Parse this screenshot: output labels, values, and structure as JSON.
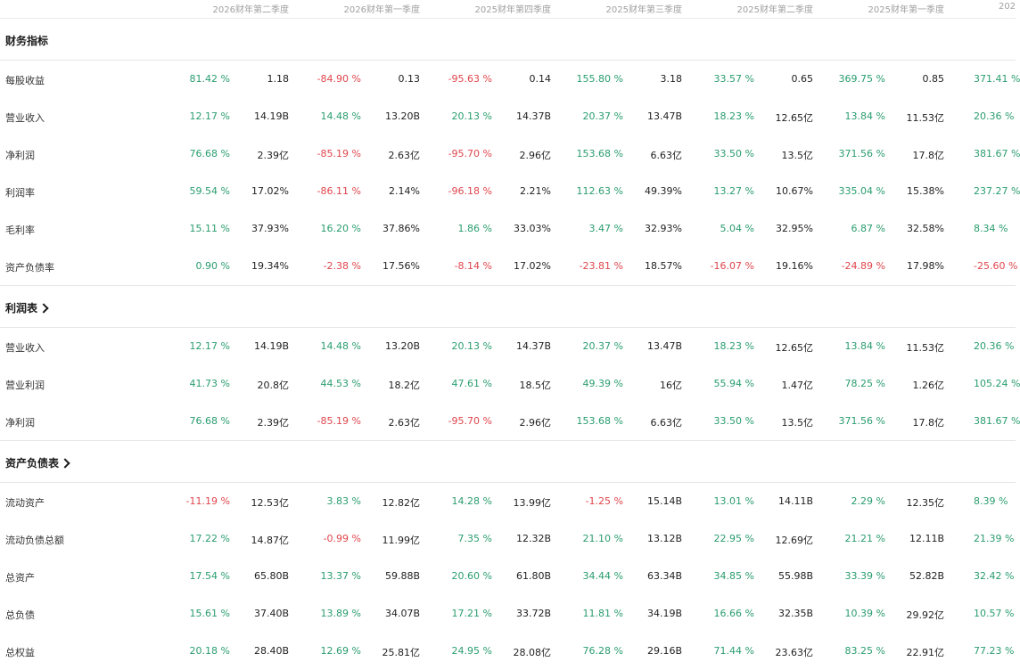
{
  "colors": {
    "positive": "#2a9d6f",
    "negative": "#e0454c",
    "header_text": "#a0a0a0"
  },
  "periods": [
    "2026财年第二季度",
    "2026财年第一季度",
    "2025财年第四季度",
    "2025财年第三季度",
    "2025财年第二季度",
    "2025财年第一季度"
  ],
  "period_clipped": "202",
  "sections": [
    {
      "title": "财务指标",
      "has_chevron": false,
      "rows": [
        {
          "label": "每股收益",
          "cells": [
            [
              "81.42 %",
              "1.18"
            ],
            [
              "-84.90 %",
              "0.13"
            ],
            [
              "-95.63 %",
              "0.14"
            ],
            [
              "155.80 %",
              "3.18"
            ],
            [
              "33.57 %",
              "0.65"
            ],
            [
              "369.75 %",
              "0.85"
            ],
            [
              "371.41 %",
              ""
            ]
          ]
        },
        {
          "label": "营业收入",
          "cells": [
            [
              "12.17 %",
              "14.19B"
            ],
            [
              "14.48 %",
              "13.20B"
            ],
            [
              "20.13 %",
              "14.37B"
            ],
            [
              "20.37 %",
              "13.47B"
            ],
            [
              "18.23 %",
              "12.65亿"
            ],
            [
              "13.84 %",
              "11.53亿"
            ],
            [
              "20.36 %",
              ""
            ]
          ]
        },
        {
          "label": "净利润",
          "cells": [
            [
              "76.68 %",
              "2.39亿"
            ],
            [
              "-85.19 %",
              "2.63亿"
            ],
            [
              "-95.70 %",
              "2.96亿"
            ],
            [
              "153.68 %",
              "6.63亿"
            ],
            [
              "33.50 %",
              "13.5亿"
            ],
            [
              "371.56 %",
              "17.8亿"
            ],
            [
              "381.67 %",
              ""
            ]
          ]
        },
        {
          "label": "利润率",
          "cells": [
            [
              "59.54 %",
              "17.02%"
            ],
            [
              "-86.11 %",
              "2.14%"
            ],
            [
              "-96.18 %",
              "2.21%"
            ],
            [
              "112.63 %",
              "49.39%"
            ],
            [
              "13.27 %",
              "10.67%"
            ],
            [
              "335.04 %",
              "15.38%"
            ],
            [
              "237.27 %",
              ""
            ]
          ]
        },
        {
          "label": "毛利率",
          "cells": [
            [
              "15.11 %",
              "37.93%"
            ],
            [
              "16.20 %",
              "37.86%"
            ],
            [
              "1.86 %",
              "33.03%"
            ],
            [
              "3.47 %",
              "32.93%"
            ],
            [
              "5.04 %",
              "32.95%"
            ],
            [
              "6.87 %",
              "32.58%"
            ],
            [
              "8.34 %",
              ""
            ]
          ]
        },
        {
          "label": "资产负债率",
          "cells": [
            [
              "0.90 %",
              "19.34%"
            ],
            [
              "-2.38 %",
              "17.56%"
            ],
            [
              "-8.14 %",
              "17.02%"
            ],
            [
              "-23.81 %",
              "18.57%"
            ],
            [
              "-16.07 %",
              "19.16%"
            ],
            [
              "-24.89 %",
              "17.98%"
            ],
            [
              "-25.60 %",
              ""
            ]
          ]
        }
      ]
    },
    {
      "title": "利润表",
      "has_chevron": true,
      "rows": [
        {
          "label": "营业收入",
          "cells": [
            [
              "12.17 %",
              "14.19B"
            ],
            [
              "14.48 %",
              "13.20B"
            ],
            [
              "20.13 %",
              "14.37B"
            ],
            [
              "20.37 %",
              "13.47B"
            ],
            [
              "18.23 %",
              "12.65亿"
            ],
            [
              "13.84 %",
              "11.53亿"
            ],
            [
              "20.36 %",
              ""
            ]
          ]
        },
        {
          "label": "营业利润",
          "cells": [
            [
              "41.73 %",
              "20.8亿"
            ],
            [
              "44.53 %",
              "18.2亿"
            ],
            [
              "47.61 %",
              "18.5亿"
            ],
            [
              "49.39 %",
              "16亿"
            ],
            [
              "55.94 %",
              "1.47亿"
            ],
            [
              "78.25 %",
              "1.26亿"
            ],
            [
              "105.24 %",
              ""
            ]
          ]
        },
        {
          "label": "净利润",
          "cells": [
            [
              "76.68 %",
              "2.39亿"
            ],
            [
              "-85.19 %",
              "2.63亿"
            ],
            [
              "-95.70 %",
              "2.96亿"
            ],
            [
              "153.68 %",
              "6.63亿"
            ],
            [
              "33.50 %",
              "13.5亿"
            ],
            [
              "371.56 %",
              "17.8亿"
            ],
            [
              "381.67 %",
              ""
            ]
          ]
        }
      ]
    },
    {
      "title": "资产负债表",
      "has_chevron": true,
      "rows": [
        {
          "label": "流动资产",
          "cells": [
            [
              "-11.19 %",
              "12.53亿"
            ],
            [
              "3.83 %",
              "12.82亿"
            ],
            [
              "14.28 %",
              "13.99亿"
            ],
            [
              "-1.25 %",
              "15.14B"
            ],
            [
              "13.01 %",
              "14.11B"
            ],
            [
              "2.29 %",
              "12.35亿"
            ],
            [
              "8.39 %",
              ""
            ]
          ]
        },
        {
          "label": "流动负债总额",
          "cells": [
            [
              "17.22 %",
              "14.87亿"
            ],
            [
              "-0.99 %",
              "11.99亿"
            ],
            [
              "7.35 %",
              "12.32B"
            ],
            [
              "21.10 %",
              "13.12B"
            ],
            [
              "22.95 %",
              "12.69亿"
            ],
            [
              "21.21 %",
              "12.11B"
            ],
            [
              "21.39 %",
              ""
            ]
          ]
        },
        {
          "label": "总资产",
          "cells": [
            [
              "17.54 %",
              "65.80B"
            ],
            [
              "13.37 %",
              "59.88B"
            ],
            [
              "20.60 %",
              "61.80B"
            ],
            [
              "34.44 %",
              "63.34B"
            ],
            [
              "34.85 %",
              "55.98B"
            ],
            [
              "33.39 %",
              "52.82B"
            ],
            [
              "32.42 %",
              ""
            ]
          ]
        },
        {
          "label": "总负债",
          "cells": [
            [
              "15.61 %",
              "37.40B"
            ],
            [
              "13.89 %",
              "34.07B"
            ],
            [
              "17.21 %",
              "33.72B"
            ],
            [
              "11.81 %",
              "34.19B"
            ],
            [
              "16.66 %",
              "32.35B"
            ],
            [
              "10.39 %",
              "29.92亿"
            ],
            [
              "10.57 %",
              ""
            ]
          ]
        },
        {
          "label": "总权益",
          "cells": [
            [
              "20.18 %",
              "28.40B"
            ],
            [
              "12.69 %",
              "25.81亿"
            ],
            [
              "24.95 %",
              "28.08亿"
            ],
            [
              "76.28 %",
              "29.16B"
            ],
            [
              "71.44 %",
              "23.63亿"
            ],
            [
              "83.25 %",
              "22.91亿"
            ],
            [
              "77.23 %",
              ""
            ]
          ]
        }
      ]
    }
  ]
}
